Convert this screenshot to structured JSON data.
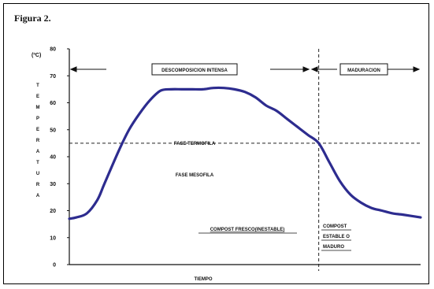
{
  "figure_label": "Figura 2.",
  "chart_data": {
    "type": "line",
    "ylabel_unit": "(ºC)",
    "ylabel": "TEMPERATURA",
    "xlabel": "TIEMPO",
    "ylim": [
      0,
      80
    ],
    "yticks": [
      "0",
      "10",
      "20",
      "30",
      "40",
      "50",
      "60",
      "70",
      "80"
    ],
    "threshold_y": 45,
    "phase_split_x": 0.71,
    "series": [
      {
        "color": "#2d2c8f",
        "x": [
          0,
          0.02,
          0.05,
          0.08,
          0.1,
          0.14,
          0.17,
          0.2,
          0.23,
          0.26,
          0.29,
          0.32,
          0.35,
          0.38,
          0.41,
          0.44,
          0.47,
          0.5,
          0.53,
          0.56,
          0.59,
          0.62,
          0.65,
          0.68,
          0.71,
          0.74,
          0.77,
          0.8,
          0.83,
          0.86,
          0.89,
          0.92,
          0.95,
          1.0
        ],
        "values": [
          17,
          17.5,
          19,
          24,
          30,
          42,
          50,
          56,
          61,
          64.5,
          65,
          65,
          65,
          65,
          65.5,
          65.5,
          65,
          64,
          62,
          59,
          57,
          54,
          51,
          48,
          45,
          38,
          31,
          26,
          23,
          21,
          20,
          19,
          18.5,
          17.5
        ]
      }
    ],
    "annotations": {
      "phase1": "DESCOMPOSICION INTENSA",
      "phase2": "MADURACION",
      "thermo": "FASE TERMOFILA",
      "meso": "FASE MESOFILA",
      "compost_fresh": "COMPOST FRESCO(INESTABLE)",
      "compost_mature": [
        "COMPOST",
        "ESTABLE O",
        "MADURO"
      ]
    }
  }
}
